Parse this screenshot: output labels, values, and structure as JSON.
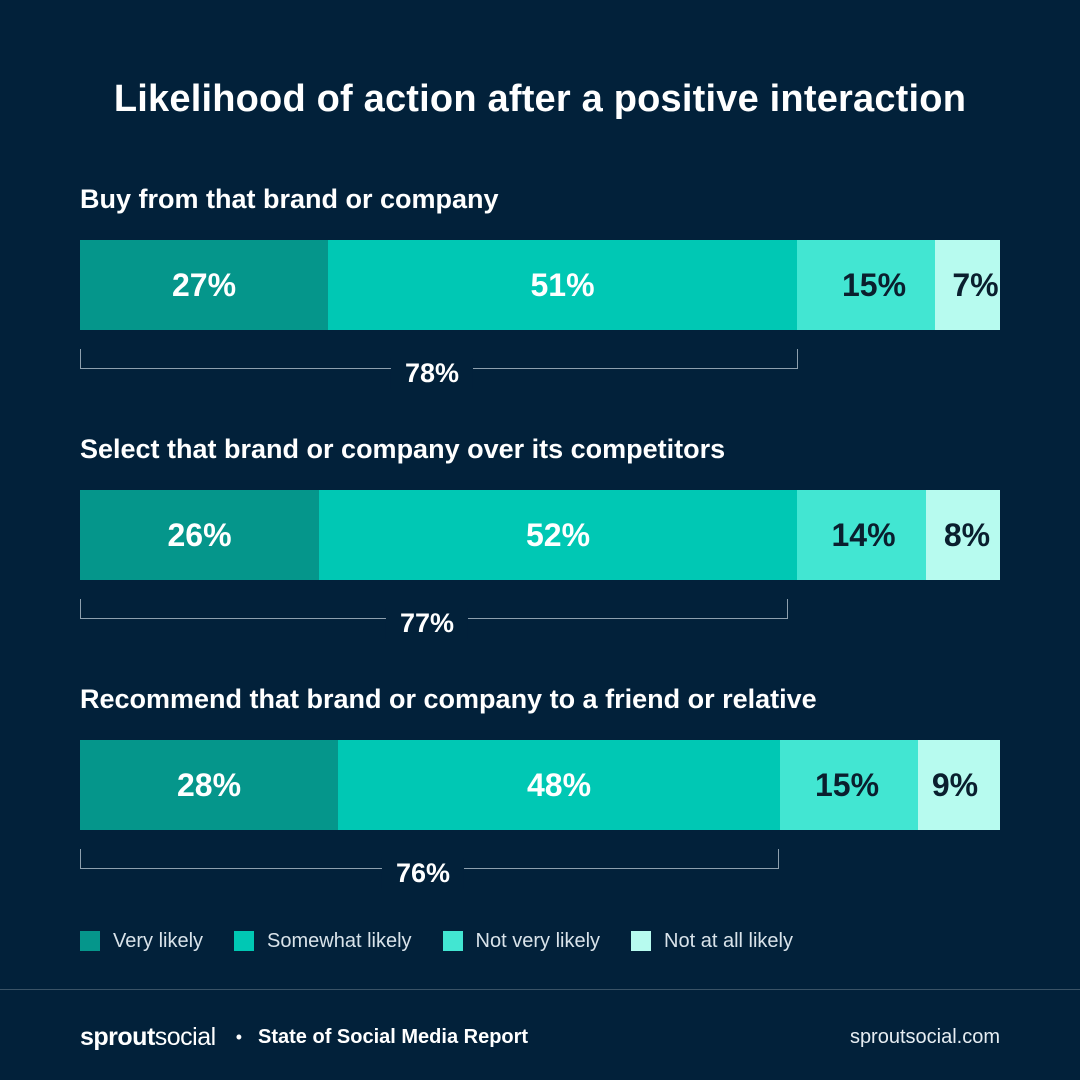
{
  "title": "Likelihood of action after a positive interaction",
  "colors": {
    "background": "#02213a",
    "very_likely": "#05968b",
    "somewhat_likely": "#00c8b4",
    "not_very_likely": "#42e6d2",
    "not_at_all_likely": "#b7fbef",
    "label_on_dark": "#ffffff",
    "label_on_light": "#0a1f2e"
  },
  "chart_data": {
    "type": "bar",
    "orientation": "horizontal",
    "stacked": true,
    "title": "Likelihood of action after a positive interaction",
    "unit": "%",
    "categories": [
      "Buy from that brand or company",
      "Select that brand or company over its competitors",
      "Recommend that brand or company to a friend or relative"
    ],
    "series": [
      {
        "name": "Very likely",
        "values": [
          27,
          26,
          28
        ],
        "labels": [
          "27%",
          "26%",
          "28%"
        ]
      },
      {
        "name": "Somewhat likely",
        "values": [
          51,
          52,
          48
        ],
        "labels": [
          "51%",
          "52%",
          "48%"
        ]
      },
      {
        "name": "Not very likely",
        "values": [
          15,
          14,
          15
        ],
        "labels": [
          "15%",
          "14%",
          "15%"
        ]
      },
      {
        "name": "Not at all likely",
        "values": [
          7,
          8,
          9
        ],
        "labels": [
          "7%",
          "8%",
          "9%"
        ]
      }
    ],
    "totals": {
      "description": "Very likely + Somewhat likely",
      "values": [
        78,
        77,
        76
      ],
      "labels": [
        "78%",
        "77%",
        "76%"
      ]
    },
    "xlim": [
      0,
      100
    ],
    "grid": false,
    "legend_position": "bottom"
  },
  "legend": [
    {
      "label": "Very likely"
    },
    {
      "label": "Somewhat likely"
    },
    {
      "label": "Not very likely"
    },
    {
      "label": "Not at all likely"
    }
  ],
  "footer": {
    "logo_bold": "sprout",
    "logo_regular": "social",
    "separator": "•",
    "report": "State of Social Media Report",
    "site": "sproutsocial.com"
  }
}
